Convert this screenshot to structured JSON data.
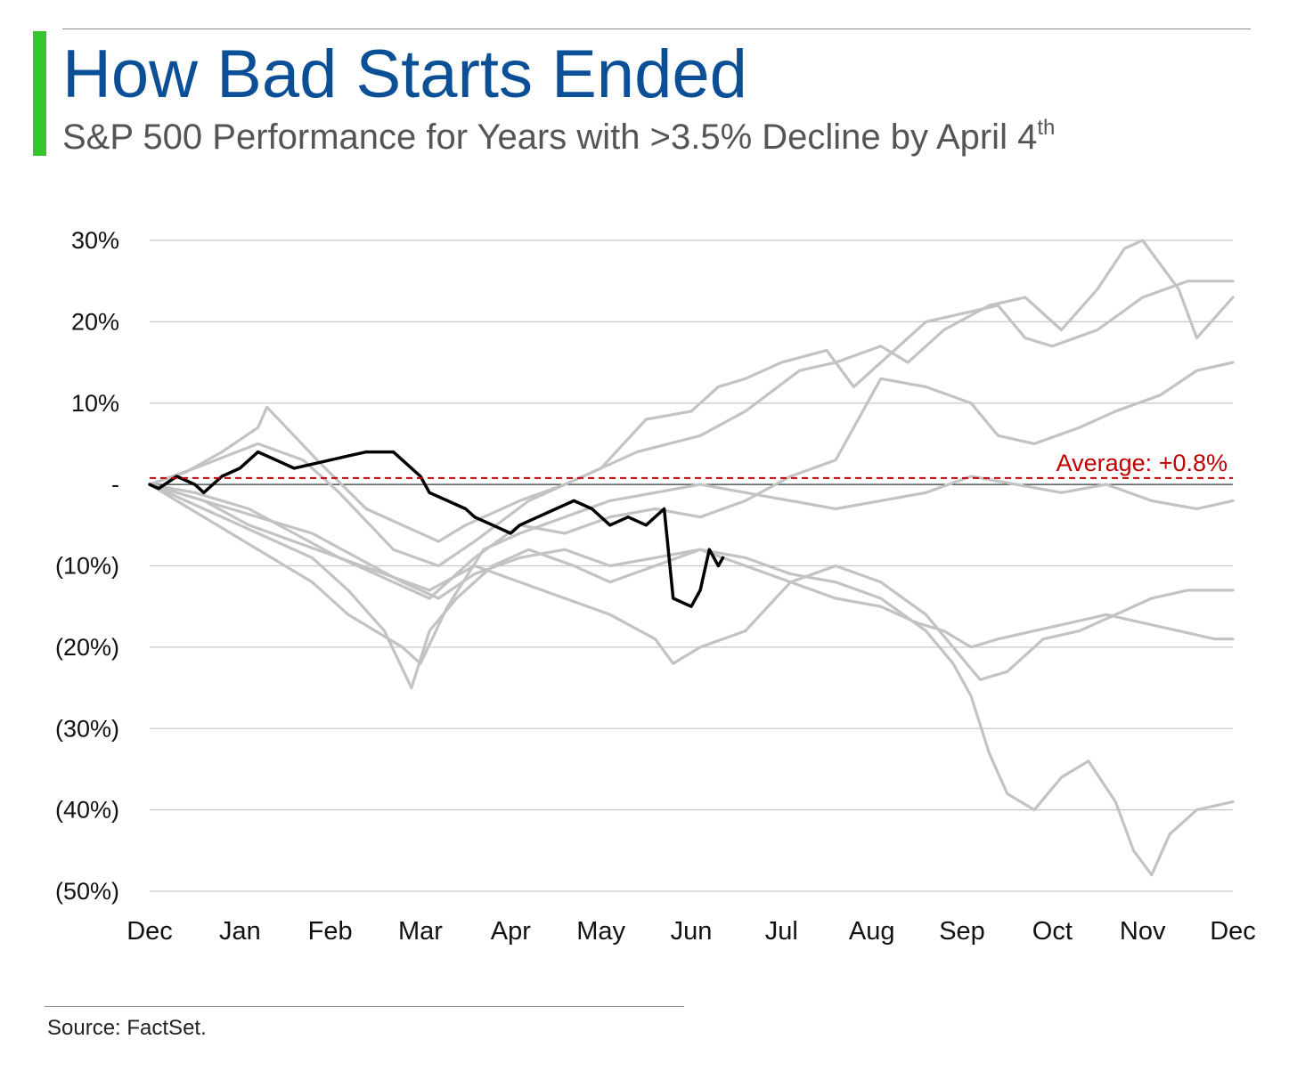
{
  "header": {
    "title": "How Bad Starts Ended",
    "subtitle": "S&P 500 Performance for Years with >3.5% Decline by April 4",
    "subtitle_superscript": "th"
  },
  "footer": {
    "source": "Source: FactSet."
  },
  "colors": {
    "title": "#0b4f96",
    "accent": "#35c62c",
    "history": "#c3c3c3",
    "current": "#000000",
    "average": "#c00000",
    "grid": "#c8c8c8",
    "zero_line": "#333333",
    "axis_text": "#111111"
  },
  "chart_data": {
    "type": "line",
    "title": "How Bad Starts Ended",
    "subtitle": "S&P 500 Performance for Years with >3.5% Decline by April 4th",
    "x_ticks": [
      "Dec",
      "Jan",
      "Feb",
      "Mar",
      "Apr",
      "May",
      "Jun",
      "Jul",
      "Aug",
      "Sep",
      "Oct",
      "Nov",
      "Dec"
    ],
    "xlim_months": [
      0,
      12
    ],
    "ylim": [
      -50,
      30
    ],
    "y_ticks": [
      {
        "value": 30,
        "label": "30%"
      },
      {
        "value": 20,
        "label": "20%"
      },
      {
        "value": 10,
        "label": "10%"
      },
      {
        "value": 0,
        "label": "-"
      },
      {
        "value": -10,
        "label": "(10%)"
      },
      {
        "value": -20,
        "label": "(20%)"
      },
      {
        "value": -30,
        "label": "(30%)"
      },
      {
        "value": -40,
        "label": "(40%)"
      },
      {
        "value": -50,
        "label": "(50%)"
      }
    ],
    "grid": true,
    "average": {
      "value": 0.8,
      "label": "Average: +0.8%"
    },
    "series": [
      {
        "role": "history",
        "points": [
          [
            0,
            0
          ],
          [
            0.4,
            1.5
          ],
          [
            0.8,
            4
          ],
          [
            1.2,
            7
          ],
          [
            1.3,
            9.5
          ],
          [
            1.6,
            6
          ],
          [
            1.9,
            2.5
          ],
          [
            2.4,
            -3
          ],
          [
            2.8,
            -5
          ],
          [
            3.2,
            -7
          ],
          [
            3.5,
            -5
          ],
          [
            4.1,
            -2
          ],
          [
            4.6,
            0
          ],
          [
            5.0,
            2
          ],
          [
            5.5,
            8
          ],
          [
            6.0,
            9
          ],
          [
            6.3,
            12
          ],
          [
            6.6,
            13
          ],
          [
            7.0,
            15
          ],
          [
            7.5,
            16.5
          ],
          [
            7.8,
            12
          ],
          [
            8.3,
            17
          ],
          [
            8.6,
            20
          ],
          [
            9.0,
            21
          ],
          [
            9.4,
            22
          ],
          [
            9.7,
            18
          ],
          [
            10.0,
            17
          ],
          [
            10.5,
            19
          ],
          [
            11.0,
            23
          ],
          [
            11.5,
            25
          ],
          [
            12,
            25
          ]
        ]
      },
      {
        "role": "history",
        "points": [
          [
            0,
            0
          ],
          [
            0.5,
            2
          ],
          [
            1.2,
            5
          ],
          [
            1.7,
            3
          ],
          [
            2.1,
            -1
          ],
          [
            2.7,
            -8
          ],
          [
            3.2,
            -10
          ],
          [
            3.6,
            -7
          ],
          [
            4.2,
            -2
          ],
          [
            4.8,
            1
          ],
          [
            5.4,
            4
          ],
          [
            6.1,
            6
          ],
          [
            6.6,
            9
          ],
          [
            7.2,
            14
          ],
          [
            7.6,
            15
          ],
          [
            8.1,
            17
          ],
          [
            8.4,
            15
          ],
          [
            8.8,
            19
          ],
          [
            9.3,
            22
          ],
          [
            9.7,
            23
          ],
          [
            10.1,
            19
          ],
          [
            10.5,
            24
          ],
          [
            10.8,
            29
          ],
          [
            11.0,
            30
          ],
          [
            11.4,
            24
          ],
          [
            11.6,
            18
          ],
          [
            12,
            23
          ]
        ]
      },
      {
        "role": "history",
        "points": [
          [
            0,
            0
          ],
          [
            0.5,
            -1
          ],
          [
            1.1,
            -3
          ],
          [
            1.6,
            -6
          ],
          [
            2.1,
            -9
          ],
          [
            2.7,
            -12
          ],
          [
            3.1,
            -14
          ],
          [
            3.6,
            -9
          ],
          [
            4.1,
            -5
          ],
          [
            4.6,
            -6
          ],
          [
            5.1,
            -4
          ],
          [
            5.6,
            -3
          ],
          [
            6.1,
            -4
          ],
          [
            6.6,
            -2
          ],
          [
            7.1,
            1
          ],
          [
            7.6,
            3
          ],
          [
            8.1,
            13
          ],
          [
            8.6,
            12
          ],
          [
            9.1,
            10
          ],
          [
            9.4,
            6
          ],
          [
            9.8,
            5
          ],
          [
            10.3,
            7
          ],
          [
            10.7,
            9
          ],
          [
            11.2,
            11
          ],
          [
            11.6,
            14
          ],
          [
            12,
            15
          ]
        ]
      },
      {
        "role": "history",
        "points": [
          [
            0,
            0
          ],
          [
            0.6,
            -4
          ],
          [
            1.2,
            -8
          ],
          [
            1.8,
            -12
          ],
          [
            2.2,
            -16
          ],
          [
            2.8,
            -20
          ],
          [
            3.0,
            -22
          ],
          [
            3.3,
            -15
          ],
          [
            3.7,
            -8
          ],
          [
            4.1,
            -6
          ],
          [
            4.6,
            -4
          ],
          [
            5.1,
            -2
          ],
          [
            5.6,
            -1
          ],
          [
            6.1,
            0
          ],
          [
            6.6,
            -1
          ],
          [
            7.1,
            -2
          ],
          [
            7.6,
            -3
          ],
          [
            8.1,
            -2
          ],
          [
            8.6,
            -1
          ],
          [
            9.1,
            1
          ],
          [
            9.6,
            0
          ],
          [
            10.1,
            -1
          ],
          [
            10.6,
            0
          ],
          [
            11.1,
            -2
          ],
          [
            11.6,
            -3
          ],
          [
            12,
            -2
          ]
        ]
      },
      {
        "role": "history",
        "points": [
          [
            0,
            0
          ],
          [
            0.6,
            -2
          ],
          [
            1.1,
            -5
          ],
          [
            1.6,
            -7
          ],
          [
            2.1,
            -9
          ],
          [
            2.6,
            -11
          ],
          [
            3.1,
            -13
          ],
          [
            3.6,
            -10
          ],
          [
            4.1,
            -12
          ],
          [
            4.6,
            -14
          ],
          [
            5.1,
            -16
          ],
          [
            5.6,
            -19
          ],
          [
            5.8,
            -22
          ],
          [
            6.1,
            -20
          ],
          [
            6.6,
            -18
          ],
          [
            7.1,
            -12
          ],
          [
            7.6,
            -10
          ],
          [
            8.1,
            -12
          ],
          [
            8.6,
            -16
          ],
          [
            8.9,
            -20
          ],
          [
            9.2,
            -24
          ],
          [
            9.5,
            -23
          ],
          [
            9.9,
            -19
          ],
          [
            10.3,
            -18
          ],
          [
            10.7,
            -16
          ],
          [
            11.1,
            -14
          ],
          [
            11.5,
            -13
          ],
          [
            12,
            -13
          ]
        ]
      },
      {
        "role": "history",
        "points": [
          [
            0,
            0
          ],
          [
            0.6,
            -3
          ],
          [
            1.2,
            -6
          ],
          [
            1.8,
            -9
          ],
          [
            2.2,
            -13
          ],
          [
            2.6,
            -18
          ],
          [
            2.9,
            -25
          ],
          [
            3.1,
            -18
          ],
          [
            3.4,
            -14
          ],
          [
            3.8,
            -10
          ],
          [
            4.2,
            -8
          ],
          [
            4.7,
            -10
          ],
          [
            5.1,
            -12
          ],
          [
            5.6,
            -10
          ],
          [
            6.1,
            -8
          ],
          [
            6.6,
            -9
          ],
          [
            7.1,
            -11
          ],
          [
            7.6,
            -12
          ],
          [
            8.1,
            -14
          ],
          [
            8.6,
            -18
          ],
          [
            8.9,
            -22
          ],
          [
            9.1,
            -26
          ],
          [
            9.3,
            -33
          ],
          [
            9.5,
            -38
          ],
          [
            9.8,
            -40
          ],
          [
            10.1,
            -36
          ],
          [
            10.4,
            -34
          ],
          [
            10.7,
            -39
          ],
          [
            10.9,
            -45
          ],
          [
            11.1,
            -48
          ],
          [
            11.3,
            -43
          ],
          [
            11.6,
            -40
          ],
          [
            12,
            -39
          ]
        ]
      },
      {
        "role": "history",
        "points": [
          [
            0,
            0
          ],
          [
            0.6,
            -2
          ],
          [
            1.2,
            -4
          ],
          [
            1.8,
            -6
          ],
          [
            2.3,
            -9
          ],
          [
            2.8,
            -12
          ],
          [
            3.2,
            -14
          ],
          [
            3.6,
            -11
          ],
          [
            4.1,
            -9
          ],
          [
            4.6,
            -8
          ],
          [
            5.1,
            -10
          ],
          [
            5.6,
            -9
          ],
          [
            6.1,
            -8
          ],
          [
            6.6,
            -10
          ],
          [
            7.1,
            -12
          ],
          [
            7.6,
            -14
          ],
          [
            8.1,
            -15
          ],
          [
            8.5,
            -17
          ],
          [
            8.8,
            -18
          ],
          [
            9.1,
            -20
          ],
          [
            9.4,
            -19
          ],
          [
            9.8,
            -18
          ],
          [
            10.2,
            -17
          ],
          [
            10.6,
            -16
          ],
          [
            11.0,
            -17
          ],
          [
            11.4,
            -18
          ],
          [
            11.8,
            -19
          ],
          [
            12,
            -19
          ]
        ]
      },
      {
        "role": "current",
        "points": [
          [
            0,
            0
          ],
          [
            0.1,
            -0.5
          ],
          [
            0.3,
            1
          ],
          [
            0.5,
            0
          ],
          [
            0.6,
            -1
          ],
          [
            0.8,
            1
          ],
          [
            1.0,
            2
          ],
          [
            1.2,
            4
          ],
          [
            1.4,
            3
          ],
          [
            1.6,
            2
          ],
          [
            1.8,
            2.5
          ],
          [
            2.0,
            3
          ],
          [
            2.2,
            3.5
          ],
          [
            2.4,
            4
          ],
          [
            2.7,
            4
          ],
          [
            2.8,
            3
          ],
          [
            3.0,
            1
          ],
          [
            3.1,
            -1
          ],
          [
            3.3,
            -2
          ],
          [
            3.5,
            -3
          ],
          [
            3.6,
            -4
          ],
          [
            3.8,
            -5
          ],
          [
            4.0,
            -6
          ],
          [
            4.1,
            -5
          ],
          [
            4.3,
            -4
          ],
          [
            4.5,
            -3
          ],
          [
            4.7,
            -2
          ],
          [
            4.9,
            -3
          ],
          [
            5.1,
            -5
          ],
          [
            5.3,
            -4
          ],
          [
            5.5,
            -5
          ],
          [
            5.7,
            -3
          ],
          [
            5.8,
            -14
          ],
          [
            6.0,
            -15
          ],
          [
            6.1,
            -13
          ],
          [
            6.2,
            -8
          ],
          [
            6.3,
            -10
          ],
          [
            6.35,
            -9
          ]
        ]
      }
    ]
  }
}
